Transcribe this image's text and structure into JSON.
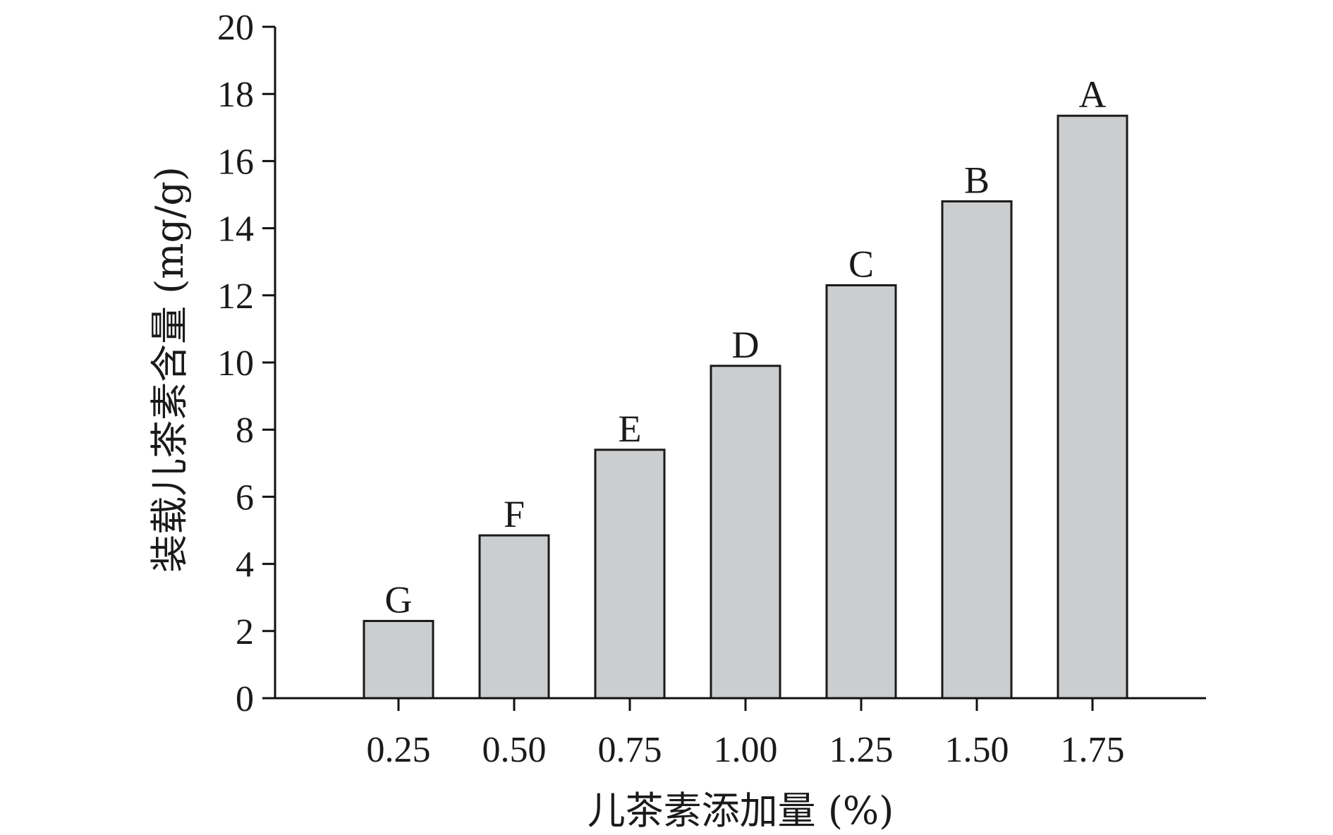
{
  "chart_data": {
    "type": "bar",
    "title": "",
    "xlabel": "儿茶素添加量 (%)",
    "ylabel": "装载儿茶素含量 (mg/g)",
    "categories": [
      "0.25",
      "0.50",
      "0.75",
      "1.00",
      "1.25",
      "1.50",
      "1.75"
    ],
    "values": [
      2.3,
      4.85,
      7.4,
      9.9,
      12.3,
      14.8,
      17.35
    ],
    "bar_labels": [
      "G",
      "F",
      "E",
      "D",
      "C",
      "B",
      "A"
    ],
    "ylim": [
      0,
      20
    ],
    "yticks": [
      "0",
      "2",
      "4",
      "6",
      "8",
      "10",
      "12",
      "14",
      "16",
      "18",
      "20"
    ],
    "grid": false,
    "legend": "none",
    "colors": {
      "bar_fill": "#cccdcf",
      "bar_stroke": "#1a1a1a",
      "axis": "#111111"
    }
  }
}
